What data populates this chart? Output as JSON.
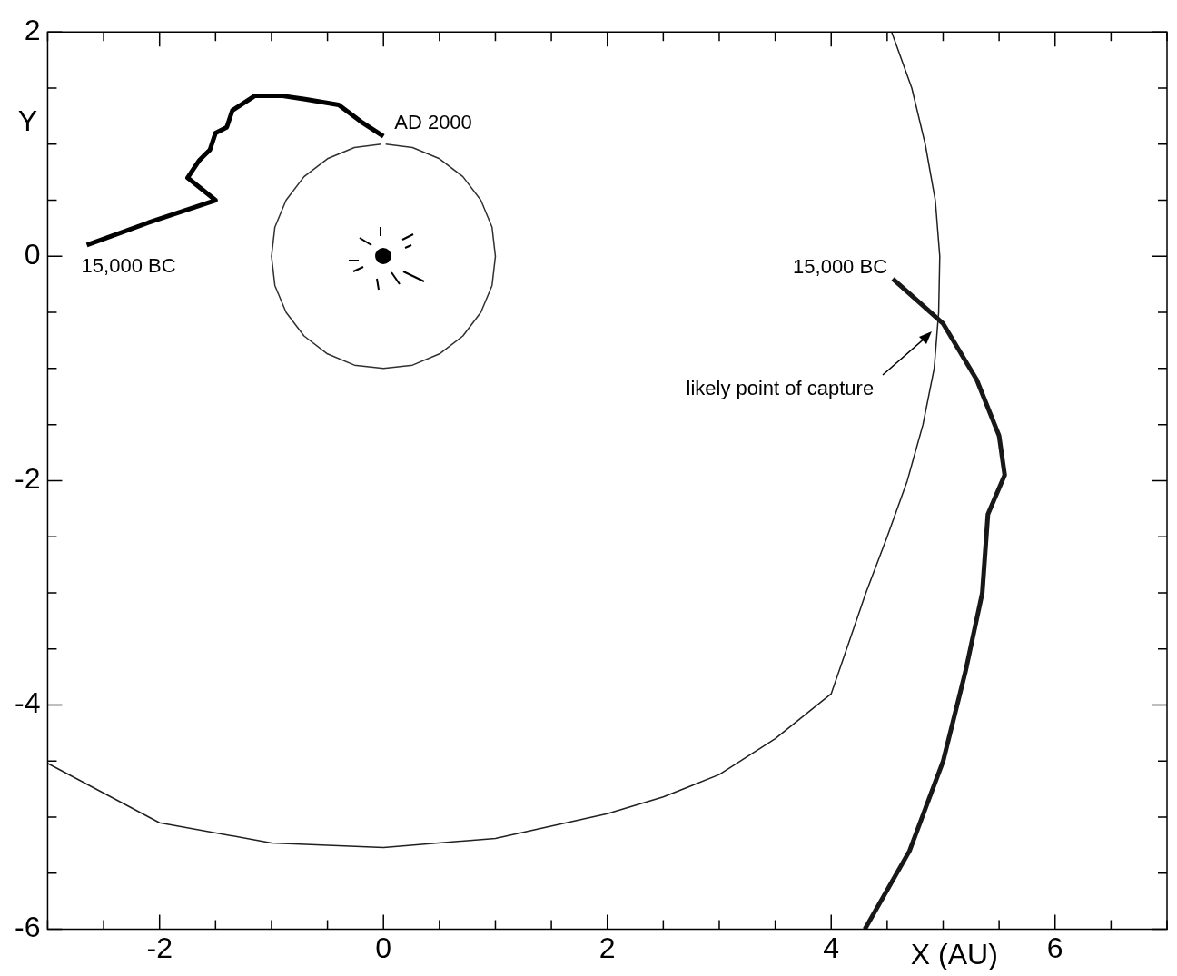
{
  "chart_data": {
    "type": "line",
    "xlabel": "X (AU)",
    "ylabel": "Y",
    "xlim": [
      -3,
      7
    ],
    "ylim": [
      -6,
      2
    ],
    "xticks": [
      {
        "value": -3,
        "label": null
      },
      {
        "value": -2.5,
        "label": null
      },
      -2,
      {
        "value": -1.5,
        "label": null
      },
      {
        "value": -1,
        "label": null
      },
      {
        "value": -0.5,
        "label": null
      },
      0,
      {
        "value": 0.5,
        "label": null
      },
      {
        "value": 1,
        "label": null
      },
      {
        "value": 1.5,
        "label": null
      },
      2,
      {
        "value": 2.5,
        "label": null
      },
      {
        "value": 3,
        "label": null
      },
      {
        "value": 3.5,
        "label": null
      },
      4,
      {
        "value": 4.5,
        "label": null
      },
      {
        "value": 5,
        "label": null
      },
      {
        "value": 5.5,
        "label": null
      },
      6,
      {
        "value": 6.5,
        "label": null
      },
      {
        "value": 7,
        "label": null
      }
    ],
    "yticks": [
      -6,
      {
        "value": -5.5,
        "label": null
      },
      {
        "value": -5,
        "label": null
      },
      {
        "value": -4.5,
        "label": null
      },
      -4,
      {
        "value": -3.5,
        "label": null
      },
      {
        "value": -3,
        "label": null
      },
      {
        "value": -2.5,
        "label": null
      },
      -2,
      {
        "value": -1.5,
        "label": null
      },
      {
        "value": -1,
        "label": null
      },
      {
        "value": -0.5,
        "label": null
      },
      0,
      {
        "value": 0.5,
        "label": null
      },
      {
        "value": 1,
        "label": null
      },
      {
        "value": 1.5,
        "label": null
      },
      2
    ],
    "grid": false,
    "legend": false,
    "series": [
      {
        "color": "#303030",
        "x": [
          0.02,
          0.26,
          0.5,
          0.71,
          0.87,
          0.97,
          1,
          0.97,
          0.87,
          0.71,
          0.5,
          0.26,
          0,
          -0.26,
          -0.5,
          -0.71,
          -0.87,
          -0.97,
          -1,
          -0.97,
          -0.87,
          -0.71,
          -0.5,
          -0.26,
          -0.02
        ],
        "values": [
          1,
          0.97,
          0.87,
          0.71,
          0.5,
          0.26,
          0,
          -0.26,
          -0.5,
          -0.71,
          -0.87,
          -0.97,
          -1,
          -0.97,
          -0.87,
          -0.71,
          -0.5,
          -0.26,
          0,
          0.26,
          0.5,
          0.71,
          0.87,
          0.97,
          1
        ]
      },
      {
        "color": "#202020",
        "x": [
          4.54,
          4.72,
          4.84,
          4.93,
          4.97,
          4.96,
          4.92,
          4.82,
          4.68,
          4.5,
          4.31,
          4.0,
          3.5,
          3,
          2.5,
          2,
          1,
          0,
          -1,
          -2,
          -3
        ],
        "values": [
          2,
          1.5,
          1,
          0.5,
          0,
          -0.5,
          -1,
          -1.5,
          -2,
          -2.5,
          -3,
          -3.9,
          -4.3,
          -4.62,
          -4.82,
          -4.97,
          -5.19,
          -5.27,
          -5.23,
          -5.05,
          -4.52
        ]
      },
      {
        "color": "#000000",
        "x": [
          -2.65,
          -2.1,
          -1.5,
          -1.75,
          -1.65,
          -1.6,
          -1.55,
          -1.5,
          -1.4,
          -1.35,
          -1.15,
          -0.9,
          -0.7,
          -0.4,
          -0.2,
          0
        ],
        "values": [
          0.1,
          0.3,
          0.5,
          0.7,
          0.85,
          0.9,
          0.95,
          1.1,
          1.15,
          1.3,
          1.43,
          1.43,
          1.4,
          1.35,
          1.2,
          1.07
        ]
      },
      {
        "color": "#181818",
        "x": [
          4.55,
          5.0,
          5.3,
          5.5,
          5.55,
          5.4,
          5.35,
          5.2,
          5.0,
          4.7,
          4.3
        ],
        "values": [
          -0.2,
          -0.6,
          -1.1,
          -1.6,
          -1.95,
          -2.3,
          -3,
          -3.7,
          -4.5,
          -5.3,
          -6
        ]
      }
    ],
    "annotations": [
      {
        "text": "15,000 BC",
        "x": -2.65,
        "y": 0.1
      },
      {
        "text": "AD 2000",
        "x": 0,
        "y": 1.07
      },
      {
        "text": "15,000 BC",
        "x": 4.55,
        "y": -0.2
      },
      {
        "text": "likely point of capture",
        "x": 4.9,
        "y": -0.67
      }
    ]
  }
}
